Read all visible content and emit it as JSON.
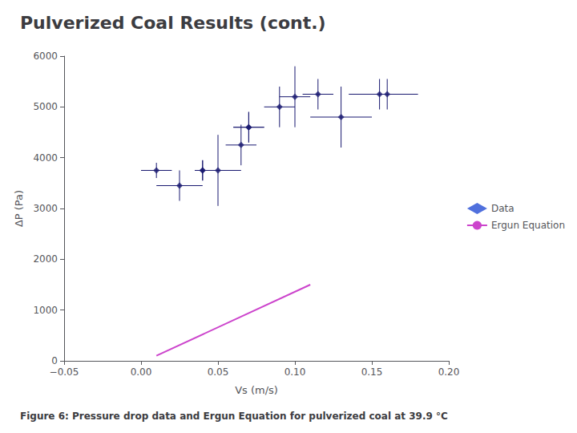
{
  "chart_data": {
    "type": "scatter",
    "title": "Pulverized Coal Results (cont.)",
    "caption": "Figure 6: Pressure drop data and Ergun Equation for pulverized coal at 39.9 °C",
    "xlabel": "Vs (m/s)",
    "ylabel": "ΔP (Pa)",
    "xlim": [
      -0.05,
      0.2
    ],
    "ylim": [
      0,
      6000
    ],
    "xticks": [
      {
        "value": -0.05,
        "label": "−0.05"
      },
      {
        "value": 0,
        "label": "0.00"
      },
      {
        "value": 0.05,
        "label": "0.05"
      },
      {
        "value": 0.1,
        "label": "0.10"
      },
      {
        "value": 0.15,
        "label": "0.15"
      },
      {
        "value": 0.2,
        "label": "0.20"
      }
    ],
    "yticks": [
      0,
      1000,
      2000,
      3000,
      4000,
      5000,
      6000
    ],
    "grid": false,
    "legend": "right",
    "series": [
      {
        "name": "Data",
        "type": "scatter",
        "color": "#191970",
        "marker": "diamond",
        "x": [
          0.01,
          0.025,
          0.04,
          0.04,
          0.05,
          0.065,
          0.07,
          0.07,
          0.09,
          0.1,
          0.115,
          0.13,
          0.155,
          0.16
        ],
        "values": [
          3750,
          3450,
          3750,
          3750,
          3750,
          4250,
          4600,
          4600,
          5000,
          5200,
          5250,
          4800,
          5250,
          5250
        ],
        "xerr": [
          0.01,
          0.015,
          0.005,
          0.005,
          0.015,
          0.01,
          0.01,
          0.01,
          0.01,
          0.01,
          0.01,
          0.02,
          0.02,
          0.02
        ],
        "yerr": [
          150,
          300,
          200,
          200,
          700,
          400,
          300,
          300,
          400,
          600,
          300,
          600,
          300,
          300
        ]
      },
      {
        "name": "Ergun Equation",
        "type": "line",
        "color": "#cc44cc",
        "line_style": "solid",
        "x": [
          0.01,
          0.11
        ],
        "values": [
          100,
          1500
        ]
      }
    ]
  }
}
